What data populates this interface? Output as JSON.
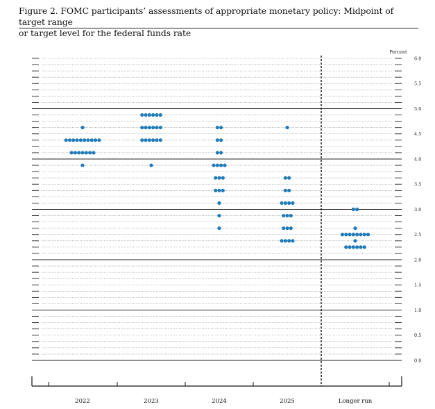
{
  "caption": {
    "line1": "Figure 2.  FOMC participants’ assessments of appropriate monetary policy:  Midpoint of target range",
    "line2": "or target level for the federal funds rate"
  },
  "chart_data": {
    "type": "scatter",
    "title": "",
    "ylabel": "Percent",
    "xlabel": "",
    "ylim": [
      0,
      6
    ],
    "yticks": [
      "6.0",
      "5.5",
      "5.0",
      "4.5",
      "4.0",
      "3.5",
      "3.0",
      "2.5",
      "2.0",
      "1.5",
      "1.0",
      "0.5",
      "0.0"
    ],
    "categories": [
      "2022",
      "2023",
      "2024",
      "2025",
      "Longer run"
    ],
    "dot_color": "#1f7ab8",
    "grid": true,
    "series": [
      {
        "category": "2022",
        "points": [
          {
            "y": 4.625,
            "count": 1
          },
          {
            "y": 4.375,
            "count": 10
          },
          {
            "y": 4.125,
            "count": 7
          },
          {
            "y": 3.875,
            "count": 1
          }
        ]
      },
      {
        "category": "2023",
        "points": [
          {
            "y": 4.875,
            "count": 6
          },
          {
            "y": 4.625,
            "count": 6
          },
          {
            "y": 4.375,
            "count": 6
          },
          {
            "y": 3.875,
            "count": 1
          }
        ]
      },
      {
        "category": "2024",
        "points": [
          {
            "y": 4.625,
            "count": 2
          },
          {
            "y": 4.375,
            "count": 2
          },
          {
            "y": 4.125,
            "count": 2
          },
          {
            "y": 3.875,
            "count": 4
          },
          {
            "y": 3.625,
            "count": 3
          },
          {
            "y": 3.375,
            "count": 3
          },
          {
            "y": 3.125,
            "count": 1
          },
          {
            "y": 2.875,
            "count": 1
          },
          {
            "y": 2.625,
            "count": 1
          }
        ]
      },
      {
        "category": "2025",
        "points": [
          {
            "y": 4.625,
            "count": 1
          },
          {
            "y": 3.625,
            "count": 2
          },
          {
            "y": 3.375,
            "count": 2
          },
          {
            "y": 3.125,
            "count": 4
          },
          {
            "y": 2.875,
            "count": 3
          },
          {
            "y": 2.625,
            "count": 3
          },
          {
            "y": 2.375,
            "count": 4
          }
        ]
      },
      {
        "category": "Longer run",
        "points": [
          {
            "y": 3.0,
            "count": 2
          },
          {
            "y": 2.625,
            "count": 1
          },
          {
            "y": 2.5,
            "count": 8
          },
          {
            "y": 2.375,
            "count": 1
          },
          {
            "y": 2.25,
            "count": 6
          }
        ]
      }
    ]
  }
}
